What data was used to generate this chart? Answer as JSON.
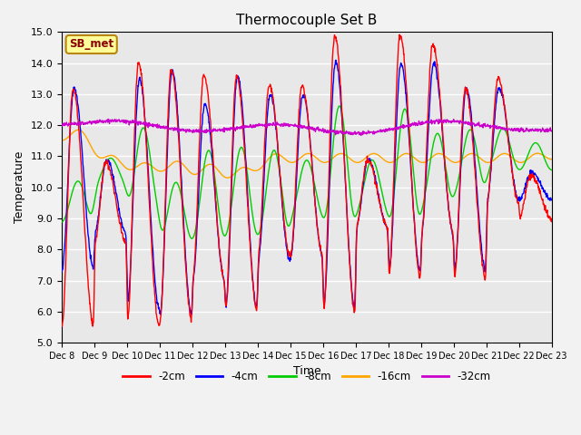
{
  "title": "Thermocouple Set B",
  "xlabel": "Time",
  "ylabel": "Temperature",
  "ylim": [
    5.0,
    15.0
  ],
  "yticks": [
    5.0,
    6.0,
    7.0,
    8.0,
    9.0,
    10.0,
    11.0,
    12.0,
    13.0,
    14.0,
    15.0
  ],
  "xtick_labels": [
    "Dec 8",
    "Dec 9",
    "Dec 10",
    "Dec 11",
    "Dec 12",
    "Dec 13",
    "Dec 14",
    "Dec 15",
    "Dec 16",
    "Dec 17",
    "Dec 18",
    "Dec 19",
    "Dec 20",
    "Dec 21",
    "Dec 22",
    "Dec 23"
  ],
  "annotation": "SB_met",
  "annotation_color": "#8B0000",
  "annotation_bg": "#FFFF99",
  "annotation_border": "#B8860B",
  "series_labels": [
    "-2cm",
    "-4cm",
    "-8cm",
    "-16cm",
    "-32cm"
  ],
  "series_colors": [
    "#FF0000",
    "#0000FF",
    "#00CC00",
    "#FFA500",
    "#CC00CC"
  ],
  "line_width": 1.0,
  "bg_color": "#E8E8E8",
  "grid_color": "#FFFFFF",
  "n_points": 1440,
  "days": 15
}
